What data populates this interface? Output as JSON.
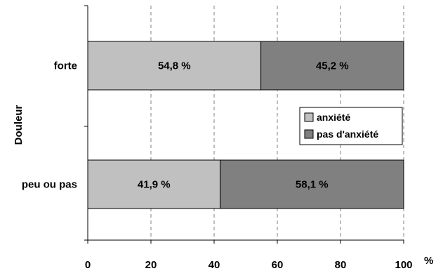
{
  "chart_data": {
    "type": "bar",
    "orientation": "horizontal",
    "stacked": true,
    "categories": [
      "forte",
      "peu ou pas"
    ],
    "series": [
      {
        "name": "anxiété",
        "values": [
          54.8,
          41.9
        ],
        "labels": [
          "54,8 %",
          "41,9 %"
        ],
        "color": "#c0c0c0"
      },
      {
        "name": "pas d'anxiété",
        "values": [
          45.2,
          58.1
        ],
        "labels": [
          "45,2 %",
          "58,1 %"
        ],
        "color": "#808080"
      }
    ],
    "ylabel": "Douleur",
    "xunit": "%",
    "xlim": [
      0,
      100
    ],
    "xticks": [
      0,
      20,
      40,
      60,
      80,
      100
    ],
    "xtick_labels": [
      "0",
      "20",
      "40",
      "60",
      "80",
      "100"
    ],
    "grid": "vertical-dashed",
    "legend_position": "right"
  }
}
